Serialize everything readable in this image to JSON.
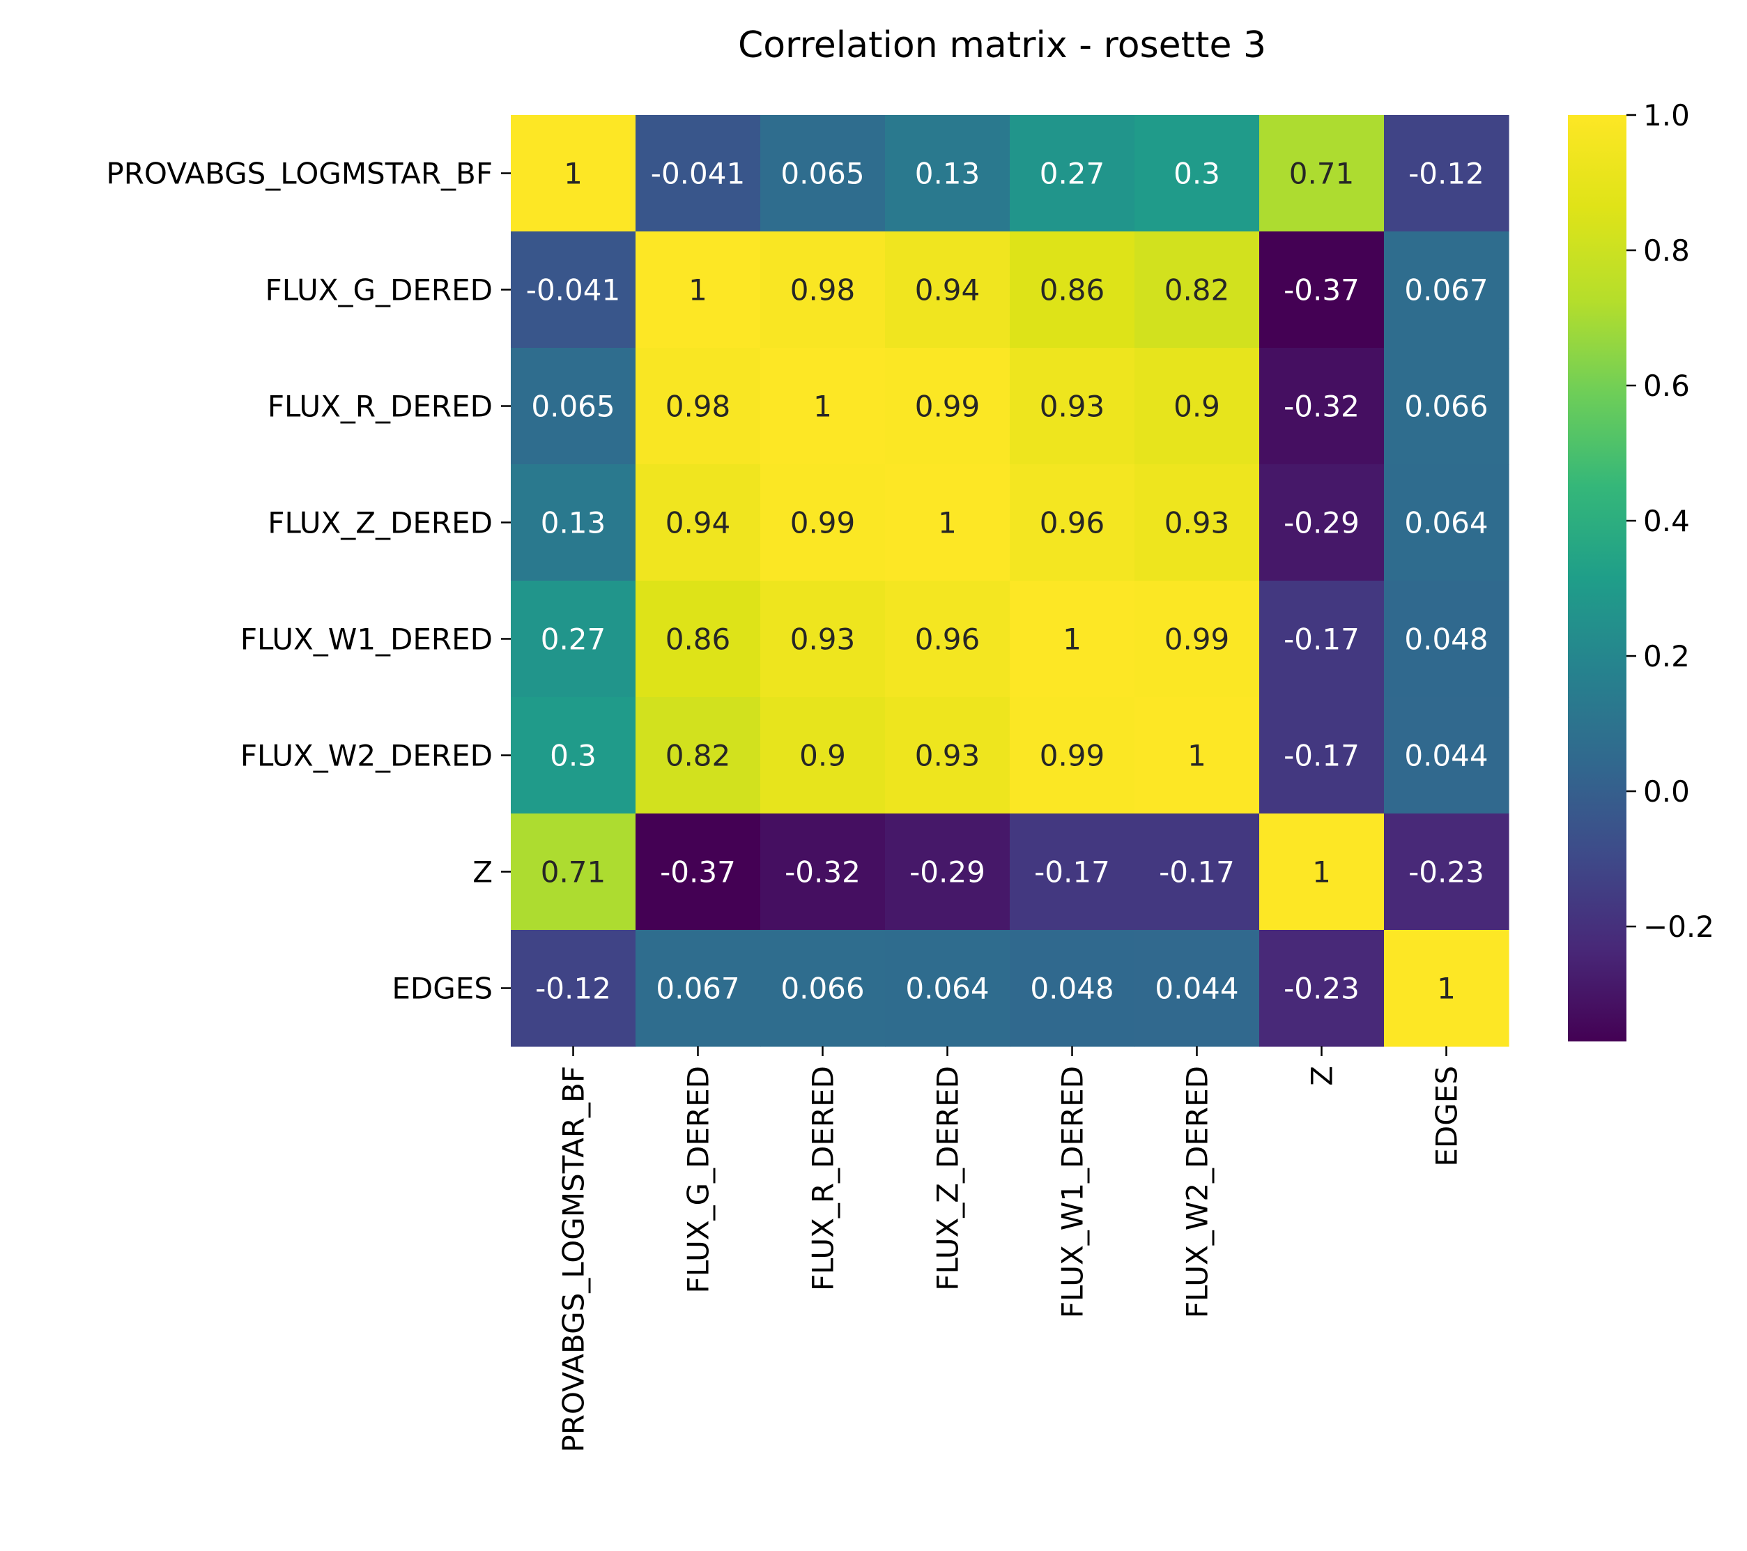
{
  "chart_data": {
    "type": "heatmap",
    "title": "Correlation matrix - rosette 3",
    "xlabel": "",
    "ylabel": "",
    "labels": [
      "PROVABGS_LOGMSTAR_BF",
      "FLUX_G_DERED",
      "FLUX_R_DERED",
      "FLUX_Z_DERED",
      "FLUX_W1_DERED",
      "FLUX_W2_DERED",
      "Z",
      "EDGES"
    ],
    "values": [
      [
        1,
        -0.041,
        0.065,
        0.13,
        0.27,
        0.3,
        0.71,
        -0.12
      ],
      [
        -0.041,
        1,
        0.98,
        0.94,
        0.86,
        0.82,
        -0.37,
        0.067
      ],
      [
        0.065,
        0.98,
        1,
        0.99,
        0.93,
        0.9,
        -0.32,
        0.066
      ],
      [
        0.13,
        0.94,
        0.99,
        1,
        0.96,
        0.93,
        -0.29,
        0.064
      ],
      [
        0.27,
        0.86,
        0.93,
        0.96,
        1,
        0.99,
        -0.17,
        0.048
      ],
      [
        0.3,
        0.82,
        0.9,
        0.93,
        0.99,
        1,
        -0.17,
        0.044
      ],
      [
        0.71,
        -0.37,
        -0.32,
        -0.29,
        -0.17,
        -0.17,
        1,
        -0.23
      ],
      [
        -0.12,
        0.067,
        0.066,
        0.064,
        0.048,
        0.044,
        -0.23,
        1
      ]
    ],
    "colormap": "viridis",
    "vmin": -0.37,
    "vmax": 1.0,
    "colorbar": {
      "ticks": [
        1.0,
        0.8,
        0.6,
        0.4,
        0.2,
        0.0,
        -0.2
      ],
      "tick_labels": [
        "1.0",
        "0.8",
        "0.6",
        "0.4",
        "0.2",
        "0.0",
        "−0.2"
      ]
    },
    "annotation_colors": {
      "dark": "#262626",
      "light": "#ffffff"
    }
  }
}
